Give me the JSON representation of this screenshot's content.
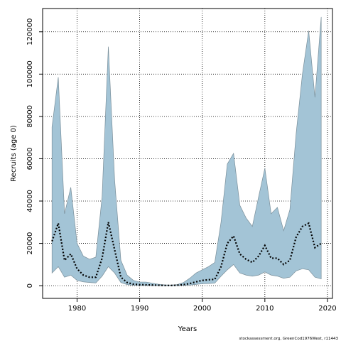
{
  "chart_data": {
    "type": "area",
    "xlabel": "Years",
    "ylabel": "Recruits (age 0)",
    "credit": "stockassessment.org, GreenCod1976West, r11443",
    "xlim": [
      1974.5,
      2020.8
    ],
    "ylim": [
      -6000,
      131000
    ],
    "xticks": [
      1980,
      1990,
      2000,
      2010,
      2020
    ],
    "yticks": [
      0,
      20000,
      40000,
      60000,
      80000,
      100000,
      120000
    ],
    "grid": true,
    "colors": {
      "band": "#a3c4d6",
      "band_edge": "#7a8f9a",
      "line": "#000000"
    },
    "years": [
      1976,
      1977,
      1978,
      1979,
      1980,
      1981,
      1982,
      1983,
      1984,
      1985,
      1986,
      1987,
      1988,
      1989,
      1990,
      1991,
      1992,
      1993,
      1994,
      1995,
      1996,
      1997,
      1998,
      1999,
      2000,
      2001,
      2002,
      2003,
      2004,
      2005,
      2006,
      2007,
      2008,
      2009,
      2010,
      2011,
      2012,
      2013,
      2014,
      2015,
      2016,
      2017,
      2018,
      2019
    ],
    "series": [
      {
        "role": "estimate",
        "values": [
          21000,
          29500,
          12000,
          15000,
          8000,
          5000,
          4000,
          4000,
          13000,
          30000,
          17000,
          4000,
          1500,
          700,
          500,
          400,
          300,
          200,
          100,
          100,
          200,
          500,
          1000,
          1800,
          2500,
          2800,
          3000,
          9000,
          20000,
          23500,
          15000,
          12500,
          11000,
          14000,
          19000,
          13000,
          13000,
          10000,
          12000,
          23000,
          28000,
          29500,
          18000,
          20000
        ]
      },
      {
        "role": "lower",
        "values": [
          6000,
          9000,
          4000,
          5000,
          2500,
          1800,
          1500,
          1300,
          4500,
          9000,
          6000,
          1500,
          500,
          200,
          100,
          100,
          50,
          30,
          20,
          20,
          50,
          150,
          300,
          600,
          900,
          1000,
          1200,
          4500,
          7500,
          10000,
          6000,
          5000,
          4500,
          5000,
          6500,
          5000,
          4500,
          3500,
          4000,
          7000,
          8000,
          7500,
          4000,
          3200
        ]
      },
      {
        "role": "upper",
        "values": [
          75000,
          98500,
          34000,
          46500,
          20000,
          14000,
          12500,
          13500,
          42000,
          113000,
          50000,
          12000,
          5000,
          2500,
          1700,
          1700,
          1200,
          700,
          400,
          300,
          500,
          1500,
          3500,
          6000,
          7500,
          9000,
          11000,
          30000,
          57500,
          62500,
          38000,
          32000,
          28000,
          42000,
          55500,
          34000,
          37000,
          26000,
          36000,
          72000,
          100000,
          120500,
          89000,
          127000
        ]
      }
    ]
  }
}
